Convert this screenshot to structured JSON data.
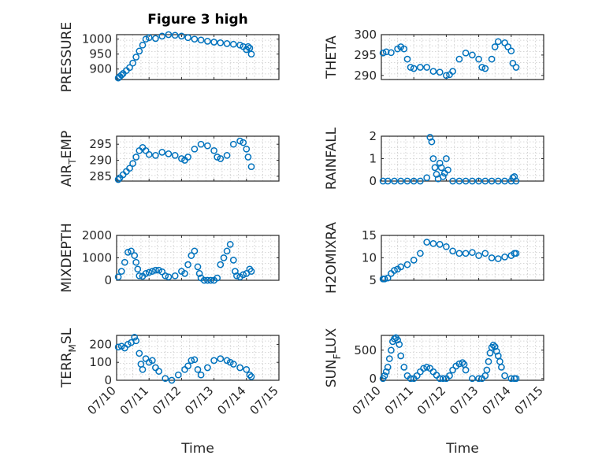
{
  "figure": {
    "title": "Figure 3 high",
    "colors": {
      "marker": "#0072bd",
      "axis": "#262626",
      "grid": "#c8c8c8",
      "background": "#ffffff"
    }
  },
  "chart_data": [
    {
      "type": "scatter",
      "ylabel": "PRESSURE",
      "title": "Figure 3 high",
      "xlim": [
        "07/10",
        "07/15"
      ],
      "x_ticks": [],
      "ylim": [
        865,
        1015
      ],
      "y_ticks": [
        900,
        950,
        1000
      ],
      "y_tick_labels": [
        "900",
        "950",
        "1000"
      ],
      "grid": true,
      "x": [
        10.05,
        10.1,
        10.15,
        10.2,
        10.3,
        10.4,
        10.5,
        10.6,
        10.7,
        10.8,
        10.9,
        11.0,
        11.2,
        11.4,
        11.6,
        11.8,
        12.0,
        12.2,
        12.4,
        12.6,
        12.8,
        13.0,
        13.2,
        13.4,
        13.6,
        13.8,
        13.9,
        14.0,
        14.05,
        14.1,
        14.15
      ],
      "y": [
        870,
        875,
        880,
        885,
        895,
        905,
        920,
        940,
        960,
        980,
        1000,
        1005,
        1002,
        1010,
        1015,
        1013,
        1010,
        1005,
        1000,
        997,
        993,
        990,
        988,
        985,
        983,
        980,
        975,
        965,
        975,
        970,
        950
      ]
    },
    {
      "type": "scatter",
      "ylabel": "THETA",
      "xlim": [
        "07/10",
        "07/15"
      ],
      "x_ticks": [],
      "ylim": [
        289,
        300
      ],
      "y_ticks": [
        290,
        295,
        300
      ],
      "y_tick_labels": [
        "290",
        "295",
        "300"
      ],
      "grid": true,
      "x": [
        10.05,
        10.15,
        10.3,
        10.5,
        10.6,
        10.7,
        10.8,
        10.9,
        11.0,
        11.2,
        11.4,
        11.6,
        11.8,
        12.0,
        12.1,
        12.2,
        12.4,
        12.6,
        12.8,
        13.0,
        13.1,
        13.2,
        13.4,
        13.5,
        13.6,
        13.8,
        13.9,
        14.0,
        14.05,
        14.15
      ],
      "y": [
        295.5,
        295.8,
        295.6,
        296.5,
        297,
        296.5,
        294,
        292,
        291.7,
        292,
        292,
        291,
        290.8,
        290,
        290.2,
        291,
        294,
        295.5,
        295,
        294,
        292,
        291.7,
        294,
        297,
        298.3,
        298,
        297,
        296,
        293,
        292
      ]
    },
    {
      "type": "scatter",
      "ylabel": "AIR_TEMP",
      "ylabel_display": [
        "AIR",
        "T",
        "EMP"
      ],
      "xlim": [
        "07/10",
        "07/15"
      ],
      "x_ticks": [],
      "ylim": [
        283.5,
        297.5
      ],
      "y_ticks": [
        285,
        290,
        295
      ],
      "y_tick_labels": [
        "285",
        "290",
        "295"
      ],
      "grid": true,
      "x": [
        10.05,
        10.1,
        10.2,
        10.3,
        10.4,
        10.5,
        10.6,
        10.7,
        10.8,
        10.9,
        11.0,
        11.2,
        11.4,
        11.6,
        11.8,
        12.0,
        12.1,
        12.2,
        12.4,
        12.6,
        12.8,
        13.0,
        13.1,
        13.2,
        13.4,
        13.6,
        13.8,
        13.9,
        14.0,
        14.05,
        14.15
      ],
      "y": [
        284,
        284.5,
        285.5,
        286.5,
        287.5,
        289,
        291,
        293,
        294,
        293,
        291.8,
        291.5,
        292.5,
        292,
        291.5,
        290.5,
        290,
        291,
        293.5,
        295,
        294.5,
        293,
        291,
        290.5,
        291.5,
        295,
        296,
        295.5,
        293.5,
        291,
        288
      ]
    },
    {
      "type": "scatter",
      "ylabel": "RAINFALL",
      "xlim": [
        "07/10",
        "07/15"
      ],
      "x_ticks": [],
      "ylim": [
        0,
        2
      ],
      "y_ticks": [
        0,
        1,
        2
      ],
      "y_tick_labels": [
        "0",
        "1",
        "2"
      ],
      "grid": true,
      "x": [
        10.05,
        10.2,
        10.4,
        10.6,
        10.8,
        11.0,
        11.2,
        11.4,
        11.5,
        11.55,
        11.6,
        11.65,
        11.7,
        11.75,
        11.8,
        11.85,
        11.9,
        11.95,
        12.0,
        12.05,
        12.2,
        12.4,
        12.6,
        12.8,
        13.0,
        13.2,
        13.4,
        13.6,
        13.8,
        14.0,
        14.05,
        14.1,
        14.15
      ],
      "y": [
        0,
        0,
        0,
        0,
        0,
        0,
        0,
        0.15,
        1.95,
        1.75,
        1.0,
        0.6,
        0.3,
        0.1,
        0.8,
        0.6,
        0.2,
        0.35,
        1.0,
        0.5,
        0,
        0,
        0,
        0,
        0,
        0,
        0,
        0,
        0,
        0,
        0.15,
        0.2,
        0
      ]
    },
    {
      "type": "scatter",
      "ylabel": "MIXDEPTH",
      "xlim": [
        "07/10",
        "07/15"
      ],
      "x_ticks": [],
      "ylim": [
        0,
        2000
      ],
      "y_ticks": [
        0,
        1000,
        2000
      ],
      "y_tick_labels": [
        "0",
        "1000",
        "2000"
      ],
      "grid": true,
      "x": [
        10.05,
        10.15,
        10.25,
        10.35,
        10.45,
        10.55,
        10.6,
        10.65,
        10.7,
        10.8,
        10.9,
        11.0,
        11.1,
        11.2,
        11.3,
        11.4,
        11.5,
        11.6,
        11.8,
        12.0,
        12.1,
        12.2,
        12.3,
        12.4,
        12.5,
        12.55,
        12.6,
        12.7,
        12.8,
        12.9,
        13.0,
        13.1,
        13.2,
        13.3,
        13.4,
        13.5,
        13.6,
        13.65,
        13.7,
        13.8,
        13.9,
        14.0,
        14.1,
        14.15
      ],
      "y": [
        150,
        400,
        800,
        1250,
        1300,
        1100,
        800,
        500,
        200,
        180,
        300,
        350,
        400,
        450,
        450,
        380,
        200,
        150,
        200,
        400,
        300,
        700,
        1100,
        1300,
        600,
        300,
        100,
        0,
        0,
        0,
        0,
        100,
        700,
        1000,
        1300,
        1600,
        900,
        400,
        200,
        150,
        250,
        300,
        500,
        400
      ]
    },
    {
      "type": "scatter",
      "ylabel": "H2OMIXRA",
      "xlim": [
        "07/10",
        "07/15"
      ],
      "x_ticks": [],
      "ylim": [
        5,
        15
      ],
      "y_ticks": [
        5,
        10,
        15
      ],
      "y_tick_labels": [
        "5",
        "10",
        "15"
      ],
      "grid": true,
      "x": [
        10.05,
        10.1,
        10.2,
        10.3,
        10.4,
        10.5,
        10.6,
        10.8,
        11.0,
        11.2,
        11.4,
        11.6,
        11.8,
        12.0,
        12.2,
        12.4,
        12.6,
        12.8,
        13.0,
        13.2,
        13.4,
        13.6,
        13.8,
        14.0,
        14.1,
        14.15
      ],
      "y": [
        5.3,
        5.3,
        5.5,
        6.5,
        7.2,
        7.5,
        8,
        8.5,
        9.5,
        11,
        13.5,
        13.2,
        13,
        12.5,
        11.5,
        11,
        11,
        11.2,
        10.5,
        11,
        10,
        9.8,
        10.2,
        10.5,
        11,
        11
      ]
    },
    {
      "type": "scatter",
      "ylabel": "TERR_MSL",
      "ylabel_display": [
        "TERR",
        "M",
        "SL"
      ],
      "xlim": [
        "07/10",
        "07/15"
      ],
      "x_ticks": [
        10,
        11,
        12,
        13,
        14,
        15
      ],
      "x_tick_labels": [
        "07/10",
        "07/11",
        "07/12",
        "07/13",
        "07/14",
        "07/15"
      ],
      "xlabel": "Time",
      "ylim": [
        0,
        250
      ],
      "y_ticks": [
        0,
        100,
        200
      ],
      "y_tick_labels": [
        "0",
        "100",
        "200"
      ],
      "grid": true,
      "x": [
        10.05,
        10.15,
        10.25,
        10.35,
        10.45,
        10.55,
        10.6,
        10.7,
        10.75,
        10.8,
        10.9,
        11.0,
        11.1,
        11.2,
        11.3,
        11.5,
        11.7,
        11.9,
        12.1,
        12.2,
        12.3,
        12.4,
        12.5,
        12.6,
        12.8,
        13.0,
        13.2,
        13.4,
        13.5,
        13.6,
        13.8,
        14.0,
        14.1,
        14.15
      ],
      "y": [
        185,
        190,
        180,
        200,
        210,
        240,
        220,
        150,
        90,
        60,
        120,
        100,
        110,
        70,
        50,
        10,
        0,
        30,
        60,
        80,
        110,
        115,
        60,
        30,
        70,
        110,
        120,
        110,
        100,
        90,
        70,
        60,
        30,
        20
      ]
    },
    {
      "type": "scatter",
      "ylabel": "SUN_FLUX",
      "ylabel_display": [
        "SUN",
        "F",
        "LUX"
      ],
      "xlim": [
        "07/10",
        "07/15"
      ],
      "x_ticks": [
        10,
        11,
        12,
        13,
        14,
        15
      ],
      "x_tick_labels": [
        "07/10",
        "07/11",
        "07/12",
        "07/13",
        "07/14",
        "07/15"
      ],
      "xlabel": "Time",
      "ylim": [
        -30,
        760
      ],
      "y_ticks": [
        0,
        500
      ],
      "y_tick_labels": [
        "0",
        "500"
      ],
      "grid": true,
      "x": [
        10.05,
        10.1,
        10.15,
        10.2,
        10.25,
        10.3,
        10.35,
        10.4,
        10.45,
        10.5,
        10.55,
        10.6,
        10.7,
        10.8,
        10.9,
        11.0,
        11.1,
        11.2,
        11.3,
        11.4,
        11.5,
        11.6,
        11.7,
        11.8,
        11.9,
        12.0,
        12.1,
        12.2,
        12.3,
        12.4,
        12.5,
        12.55,
        12.6,
        12.8,
        13.0,
        13.1,
        13.2,
        13.25,
        13.3,
        13.35,
        13.4,
        13.45,
        13.5,
        13.55,
        13.6,
        13.65,
        13.7,
        13.8,
        14.0,
        14.1,
        14.15
      ],
      "y": [
        0,
        50,
        120,
        200,
        350,
        500,
        650,
        700,
        720,
        680,
        600,
        400,
        200,
        50,
        0,
        0,
        50,
        120,
        180,
        200,
        180,
        120,
        60,
        0,
        0,
        0,
        50,
        150,
        220,
        260,
        280,
        250,
        150,
        0,
        0,
        0,
        50,
        150,
        300,
        450,
        550,
        590,
        560,
        480,
        400,
        300,
        200,
        50,
        0,
        0,
        0
      ]
    }
  ]
}
